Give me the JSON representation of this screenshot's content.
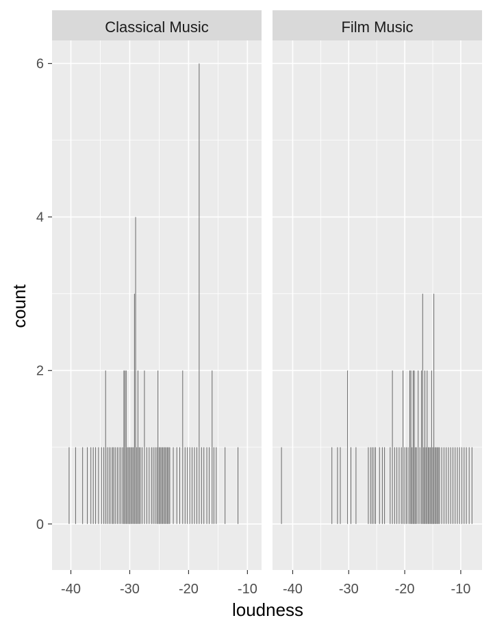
{
  "chart_data": {
    "type": "bar",
    "xlabel": "loudness",
    "ylabel": "count",
    "ylim": [
      -0.6,
      6.3
    ],
    "y_ticks": [
      0,
      2,
      4,
      6
    ],
    "y_tick_labels": [
      "0",
      "2",
      "4",
      "6"
    ],
    "grid": true,
    "bin_width": 0.05,
    "colors": {
      "panel_bg": "#ebebeb",
      "strip_bg": "#d9d9d9",
      "grid": "#ffffff",
      "bar": "#595959",
      "tick_text": "#4d4d4d"
    },
    "facets": [
      {
        "name": "Classical Music",
        "xlim": [
          -43.2,
          -7.6
        ],
        "x_ticks": [
          -40,
          -30,
          -20,
          -10
        ],
        "x_tick_labels": [
          "-40",
          "-30",
          "-20",
          "-10"
        ],
        "bins": [
          {
            "x": -40.3,
            "count": 1
          },
          {
            "x": -39.2,
            "count": 1
          },
          {
            "x": -38.0,
            "count": 1
          },
          {
            "x": -37.2,
            "count": 1
          },
          {
            "x": -36.6,
            "count": 1
          },
          {
            "x": -36.2,
            "count": 1
          },
          {
            "x": -35.8,
            "count": 1
          },
          {
            "x": -35.3,
            "count": 1
          },
          {
            "x": -34.8,
            "count": 1
          },
          {
            "x": -34.4,
            "count": 1
          },
          {
            "x": -34.1,
            "count": 2
          },
          {
            "x": -33.8,
            "count": 1
          },
          {
            "x": -33.5,
            "count": 1
          },
          {
            "x": -33.2,
            "count": 1
          },
          {
            "x": -32.9,
            "count": 1
          },
          {
            "x": -32.7,
            "count": 1
          },
          {
            "x": -32.4,
            "count": 1
          },
          {
            "x": -32.1,
            "count": 1
          },
          {
            "x": -31.8,
            "count": 1
          },
          {
            "x": -31.5,
            "count": 1
          },
          {
            "x": -31.2,
            "count": 1
          },
          {
            "x": -31.0,
            "count": 2
          },
          {
            "x": -30.8,
            "count": 2
          },
          {
            "x": -30.6,
            "count": 2
          },
          {
            "x": -30.4,
            "count": 1
          },
          {
            "x": -30.2,
            "count": 1
          },
          {
            "x": -30.0,
            "count": 1
          },
          {
            "x": -29.8,
            "count": 1
          },
          {
            "x": -29.6,
            "count": 1
          },
          {
            "x": -29.4,
            "count": 1
          },
          {
            "x": -29.2,
            "count": 3
          },
          {
            "x": -29.0,
            "count": 4
          },
          {
            "x": -28.8,
            "count": 1
          },
          {
            "x": -28.6,
            "count": 2
          },
          {
            "x": -28.4,
            "count": 1
          },
          {
            "x": -28.2,
            "count": 1
          },
          {
            "x": -27.9,
            "count": 1
          },
          {
            "x": -27.5,
            "count": 2
          },
          {
            "x": -27.1,
            "count": 1
          },
          {
            "x": -26.7,
            "count": 1
          },
          {
            "x": -26.3,
            "count": 1
          },
          {
            "x": -26.0,
            "count": 1
          },
          {
            "x": -25.7,
            "count": 1
          },
          {
            "x": -25.4,
            "count": 1
          },
          {
            "x": -25.2,
            "count": 2
          },
          {
            "x": -25.0,
            "count": 1
          },
          {
            "x": -24.8,
            "count": 1
          },
          {
            "x": -24.6,
            "count": 1
          },
          {
            "x": -24.4,
            "count": 1
          },
          {
            "x": -24.2,
            "count": 1
          },
          {
            "x": -24.0,
            "count": 1
          },
          {
            "x": -23.8,
            "count": 1
          },
          {
            "x": -23.6,
            "count": 1
          },
          {
            "x": -23.4,
            "count": 1
          },
          {
            "x": -23.2,
            "count": 1
          },
          {
            "x": -22.6,
            "count": 1
          },
          {
            "x": -22.0,
            "count": 1
          },
          {
            "x": -21.5,
            "count": 1
          },
          {
            "x": -21.0,
            "count": 2
          },
          {
            "x": -20.6,
            "count": 1
          },
          {
            "x": -20.2,
            "count": 1
          },
          {
            "x": -19.8,
            "count": 1
          },
          {
            "x": -19.4,
            "count": 1
          },
          {
            "x": -19.0,
            "count": 1
          },
          {
            "x": -18.6,
            "count": 1
          },
          {
            "x": -18.2,
            "count": 6
          },
          {
            "x": -17.8,
            "count": 1
          },
          {
            "x": -17.4,
            "count": 1
          },
          {
            "x": -16.9,
            "count": 1
          },
          {
            "x": -16.5,
            "count": 1
          },
          {
            "x": -16.0,
            "count": 2
          },
          {
            "x": -15.7,
            "count": 1
          },
          {
            "x": -15.3,
            "count": 1
          },
          {
            "x": -13.8,
            "count": 1
          },
          {
            "x": -11.6,
            "count": 1
          }
        ]
      },
      {
        "name": "Film Music",
        "xlim": [
          -43.6,
          -6.2
        ],
        "x_ticks": [
          -40,
          -30,
          -20,
          -10
        ],
        "x_tick_labels": [
          "-40",
          "-30",
          "-20",
          "-10"
        ],
        "bins": [
          {
            "x": -42.0,
            "count": 1
          },
          {
            "x": -33.0,
            "count": 1
          },
          {
            "x": -32.0,
            "count": 1
          },
          {
            "x": -31.5,
            "count": 1
          },
          {
            "x": -30.2,
            "count": 2
          },
          {
            "x": -29.6,
            "count": 1
          },
          {
            "x": -28.7,
            "count": 1
          },
          {
            "x": -26.5,
            "count": 1
          },
          {
            "x": -26.1,
            "count": 1
          },
          {
            "x": -25.8,
            "count": 1
          },
          {
            "x": -25.5,
            "count": 1
          },
          {
            "x": -25.2,
            "count": 1
          },
          {
            "x": -24.5,
            "count": 1
          },
          {
            "x": -24.0,
            "count": 1
          },
          {
            "x": -23.6,
            "count": 1
          },
          {
            "x": -22.6,
            "count": 1
          },
          {
            "x": -22.2,
            "count": 2
          },
          {
            "x": -21.8,
            "count": 1
          },
          {
            "x": -21.4,
            "count": 1
          },
          {
            "x": -21.0,
            "count": 1
          },
          {
            "x": -20.6,
            "count": 1
          },
          {
            "x": -20.3,
            "count": 2
          },
          {
            "x": -20.0,
            "count": 1
          },
          {
            "x": -19.7,
            "count": 1
          },
          {
            "x": -19.4,
            "count": 1
          },
          {
            "x": -19.1,
            "count": 2
          },
          {
            "x": -18.9,
            "count": 2
          },
          {
            "x": -18.7,
            "count": 1
          },
          {
            "x": -18.5,
            "count": 2
          },
          {
            "x": -18.3,
            "count": 2
          },
          {
            "x": -18.1,
            "count": 1
          },
          {
            "x": -17.9,
            "count": 1
          },
          {
            "x": -17.6,
            "count": 2
          },
          {
            "x": -17.3,
            "count": 1
          },
          {
            "x": -17.0,
            "count": 2
          },
          {
            "x": -16.8,
            "count": 3
          },
          {
            "x": -16.6,
            "count": 1
          },
          {
            "x": -16.4,
            "count": 2
          },
          {
            "x": -16.2,
            "count": 1
          },
          {
            "x": -16.0,
            "count": 2
          },
          {
            "x": -15.8,
            "count": 1
          },
          {
            "x": -15.6,
            "count": 1
          },
          {
            "x": -15.4,
            "count": 1
          },
          {
            "x": -15.2,
            "count": 2
          },
          {
            "x": -15.0,
            "count": 1
          },
          {
            "x": -14.8,
            "count": 3
          },
          {
            "x": -14.6,
            "count": 1
          },
          {
            "x": -14.4,
            "count": 1
          },
          {
            "x": -14.2,
            "count": 1
          },
          {
            "x": -14.0,
            "count": 1
          },
          {
            "x": -13.8,
            "count": 1
          },
          {
            "x": -13.4,
            "count": 1
          },
          {
            "x": -13.0,
            "count": 1
          },
          {
            "x": -12.6,
            "count": 1
          },
          {
            "x": -12.2,
            "count": 1
          },
          {
            "x": -11.8,
            "count": 1
          },
          {
            "x": -11.4,
            "count": 1
          },
          {
            "x": -11.0,
            "count": 1
          },
          {
            "x": -10.6,
            "count": 1
          },
          {
            "x": -10.2,
            "count": 1
          },
          {
            "x": -9.8,
            "count": 1
          },
          {
            "x": -9.4,
            "count": 1
          },
          {
            "x": -9.0,
            "count": 1
          },
          {
            "x": -8.5,
            "count": 1
          },
          {
            "x": -8.0,
            "count": 1
          }
        ]
      }
    ]
  }
}
